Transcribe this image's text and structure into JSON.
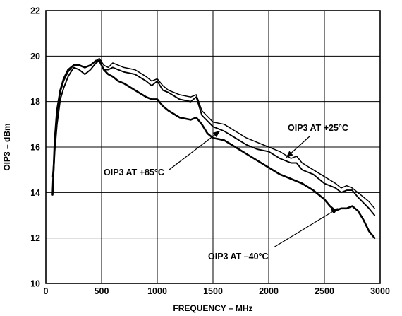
{
  "chart_data": {
    "type": "line",
    "title": "",
    "xlabel": "FREQUENCY – MHz",
    "ylabel": "OIP3 – dBm",
    "xlim": [
      0,
      3000
    ],
    "ylim": [
      10,
      22
    ],
    "x_ticks": [
      "0",
      "500",
      "1000",
      "1500",
      "2000",
      "2500",
      "3000"
    ],
    "y_ticks": [
      "10",
      "12",
      "14",
      "16",
      "18",
      "20",
      "22"
    ],
    "grid": true,
    "series": [
      {
        "name": "OIP3 AT +25°C",
        "x": [
          60,
          80,
          100,
          130,
          160,
          200,
          250,
          300,
          350,
          400,
          450,
          480,
          520,
          560,
          600,
          650,
          700,
          800,
          900,
          950,
          1000,
          1050,
          1100,
          1200,
          1300,
          1350,
          1400,
          1500,
          1600,
          1700,
          1800,
          1900,
          2000,
          2100,
          2200,
          2250,
          2300,
          2400,
          2500,
          2600,
          2650,
          2700,
          2750,
          2800,
          2900,
          2950
        ],
        "y": [
          14.7,
          16.0,
          17.4,
          18.4,
          18.9,
          19.3,
          19.6,
          19.6,
          19.5,
          19.6,
          19.8,
          19.9,
          19.6,
          19.5,
          19.7,
          19.6,
          19.5,
          19.4,
          19.1,
          18.9,
          19.0,
          18.7,
          18.5,
          18.3,
          18.2,
          18.3,
          17.6,
          17.1,
          17.0,
          16.7,
          16.4,
          16.2,
          16.0,
          15.8,
          15.5,
          15.6,
          15.3,
          15.0,
          14.7,
          14.4,
          14.2,
          14.3,
          14.2,
          14.0,
          13.6,
          13.3
        ]
      },
      {
        "name": "OIP3 AT +85°C",
        "x": [
          60,
          80,
          100,
          130,
          160,
          200,
          250,
          300,
          350,
          400,
          450,
          480,
          520,
          560,
          600,
          650,
          700,
          800,
          900,
          950,
          1000,
          1050,
          1100,
          1200,
          1300,
          1350,
          1400,
          1500,
          1600,
          1700,
          1800,
          1900,
          2000,
          2100,
          2200,
          2250,
          2300,
          2400,
          2500,
          2600,
          2650,
          2700,
          2750,
          2800,
          2900,
          2950
        ],
        "y": [
          14.0,
          15.8,
          17.0,
          18.1,
          18.6,
          19.1,
          19.5,
          19.4,
          19.2,
          19.4,
          19.7,
          19.8,
          19.4,
          19.4,
          19.5,
          19.4,
          19.3,
          19.2,
          18.9,
          18.7,
          18.9,
          18.5,
          18.4,
          18.1,
          18.0,
          18.2,
          17.4,
          16.9,
          16.7,
          16.4,
          16.1,
          15.9,
          15.8,
          15.5,
          15.3,
          15.3,
          15.0,
          14.8,
          14.4,
          14.2,
          14.0,
          14.1,
          14.1,
          13.8,
          13.3,
          13.0
        ]
      },
      {
        "name": "OIP3 AT –40°C",
        "x": [
          60,
          80,
          100,
          130,
          160,
          200,
          250,
          300,
          350,
          400,
          450,
          480,
          520,
          560,
          600,
          650,
          700,
          800,
          900,
          950,
          1000,
          1050,
          1100,
          1200,
          1300,
          1350,
          1400,
          1450,
          1500,
          1600,
          1700,
          1800,
          1900,
          2000,
          2100,
          2200,
          2300,
          2400,
          2500,
          2550,
          2600,
          2650,
          2700,
          2750,
          2800,
          2850,
          2900,
          2950
        ],
        "y": [
          13.9,
          16.3,
          17.6,
          18.5,
          19.0,
          19.4,
          19.6,
          19.6,
          19.5,
          19.6,
          19.8,
          19.8,
          19.4,
          19.2,
          19.1,
          18.9,
          18.8,
          18.5,
          18.2,
          18.1,
          18.1,
          17.8,
          17.6,
          17.3,
          17.2,
          17.3,
          17.0,
          16.6,
          16.4,
          16.3,
          16.0,
          15.7,
          15.4,
          15.1,
          14.8,
          14.6,
          14.4,
          14.1,
          13.7,
          13.4,
          13.2,
          13.3,
          13.3,
          13.4,
          13.2,
          12.8,
          12.3,
          12.0
        ]
      }
    ],
    "annotations": [
      {
        "text": "OIP3 AT +25°C",
        "series": 0,
        "arrow_to_x": 2160,
        "arrow_to_y": 15.55
      },
      {
        "text": "OIP3 AT +85°C",
        "series": 1,
        "arrow_to_x": 1560,
        "arrow_to_y": 16.7
      },
      {
        "text": "OIP3 AT –40°C",
        "series": 2,
        "arrow_to_x": 2620,
        "arrow_to_y": 13.3
      }
    ]
  }
}
